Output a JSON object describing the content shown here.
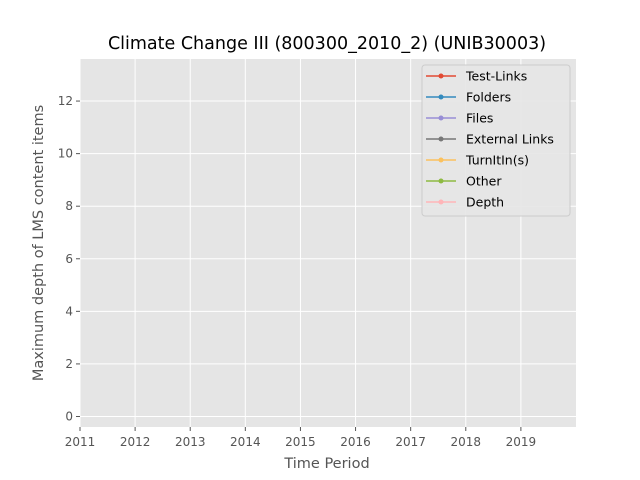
{
  "chart_data": {
    "type": "line",
    "title": "Climate Change III (800300_2010_2) (UNIB30003)",
    "xlabel": "Time Period",
    "ylabel": "Maximum depth of LMS content items",
    "x_ticks": [
      "2011",
      "2012",
      "2013",
      "2014",
      "2015",
      "2016",
      "2017",
      "2018",
      "2019"
    ],
    "y_ticks": [
      "0",
      "2",
      "4",
      "6",
      "8",
      "10",
      "12"
    ],
    "xlim": [
      2011,
      2020
    ],
    "ylim": [
      -0.4,
      13.6
    ],
    "grid": true,
    "legend_position": "top-right",
    "series": [
      {
        "name": "Test-Links",
        "color": "#e24a33",
        "x": [],
        "y": []
      },
      {
        "name": "Folders",
        "color": "#348abd",
        "x": [],
        "y": []
      },
      {
        "name": "Files",
        "color": "#988ed5",
        "x": [],
        "y": []
      },
      {
        "name": "External Links",
        "color": "#777777",
        "x": [],
        "y": []
      },
      {
        "name": "TurnItIn(s)",
        "color": "#fbc15e",
        "x": [],
        "y": []
      },
      {
        "name": "Other",
        "color": "#8eba42",
        "x": [],
        "y": []
      },
      {
        "name": "Depth",
        "color": "#ffb5b8",
        "x": [],
        "y": []
      }
    ]
  }
}
